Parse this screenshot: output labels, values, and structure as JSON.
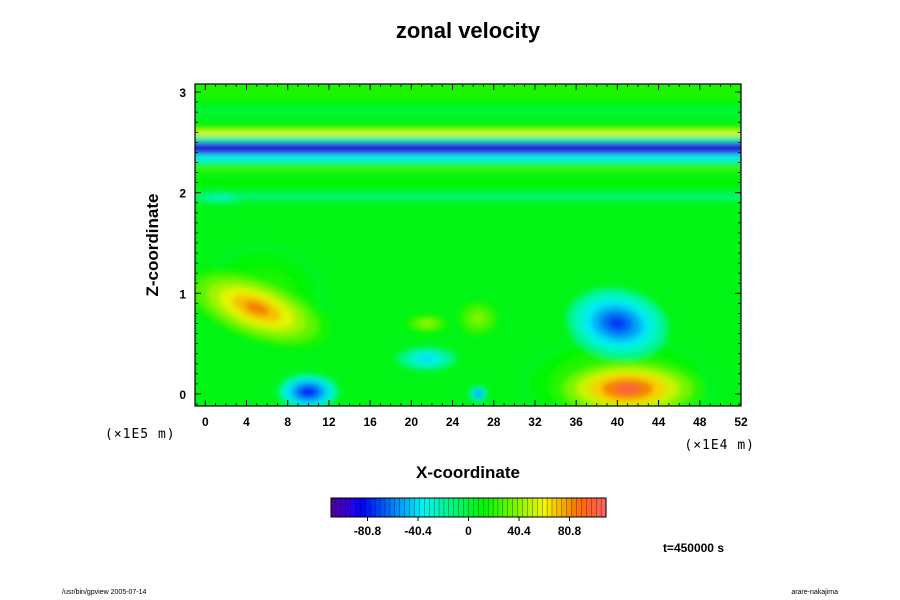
{
  "chart_data": {
    "type": "heatmap",
    "title": "zonal velocity",
    "xlabel": "X-coordinate",
    "ylabel": "Z-coordinate",
    "x_scale_label": "(×1E4 m)",
    "y_scale_label": "(×1E5 m)",
    "x_ticks": [
      0,
      4,
      8,
      12,
      16,
      20,
      24,
      28,
      32,
      36,
      40,
      44,
      48,
      52
    ],
    "y_ticks": [
      0,
      1,
      2,
      3
    ],
    "xlim": [
      -1,
      52
    ],
    "ylim": [
      -0.12,
      3.08
    ],
    "colorbar": {
      "ticks": [
        -80.8,
        -40.4,
        0,
        40.4,
        80.8
      ],
      "range": [
        -110,
        110
      ]
    },
    "time_label": "t=450000 s",
    "features": [
      {
        "name": "upper-jet-negative",
        "z": 2.44,
        "u": -95
      },
      {
        "name": "upper-band-positive",
        "z": 2.6,
        "u": 55
      },
      {
        "name": "left-low-positive",
        "x": 5,
        "z": 0.85,
        "u": 85
      },
      {
        "name": "right-bottom-positive",
        "x": 41,
        "z": 0.05,
        "u": 100
      },
      {
        "name": "right-low-negative",
        "x": 40,
        "z": 0.7,
        "u": -75
      },
      {
        "name": "bottom-negative",
        "x": 10,
        "z": 0.0,
        "u": -85
      }
    ]
  },
  "footer": {
    "left": "/usr/bin/gpview 2005-07-14",
    "right": "arare-nakajima"
  },
  "colors": {
    "background": "#ffffff",
    "plot_base": "#22e622"
  }
}
